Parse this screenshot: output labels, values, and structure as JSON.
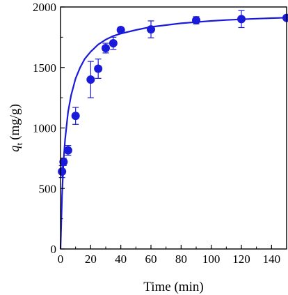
{
  "chart_data": {
    "type": "scatter",
    "xlabel": "Time (min)",
    "ylabel_symbol": "q",
    "ylabel_subscript": "t",
    "ylabel_units": "(mg/g)",
    "xlim": [
      0,
      150
    ],
    "ylim": [
      0,
      2000
    ],
    "x_ticks": [
      0,
      20,
      40,
      60,
      80,
      100,
      120,
      140
    ],
    "y_ticks": [
      0,
      500,
      1000,
      1500,
      2000
    ],
    "grid": false,
    "legend": "none",
    "colors": {
      "marker": "#1a1adb",
      "fit_line": "#1a1adb",
      "axes": "#000000"
    },
    "series": [
      {
        "kind": "points",
        "x": [
          1,
          2,
          5,
          10,
          20,
          25,
          30,
          35,
          40,
          60,
          90,
          120,
          150
        ],
        "y": [
          640,
          720,
          815,
          1100,
          1400,
          1490,
          1660,
          1700,
          1810,
          1815,
          1890,
          1900,
          1910
        ],
        "yerr": [
          50,
          30,
          40,
          70,
          150,
          80,
          40,
          50,
          0,
          70,
          30,
          70,
          0
        ]
      },
      {
        "kind": "fit",
        "x": [
          0,
          1,
          2,
          3,
          5,
          7,
          10,
          13,
          16,
          20,
          25,
          30,
          35,
          40,
          50,
          60,
          70,
          80,
          90,
          100,
          110,
          120,
          130,
          140,
          150
        ],
        "y": [
          0,
          440,
          720,
          900,
          1130,
          1270,
          1410,
          1500,
          1570,
          1630,
          1690,
          1730,
          1760,
          1780,
          1810,
          1835,
          1850,
          1865,
          1875,
          1885,
          1892,
          1898,
          1903,
          1908,
          1912
        ]
      }
    ]
  }
}
